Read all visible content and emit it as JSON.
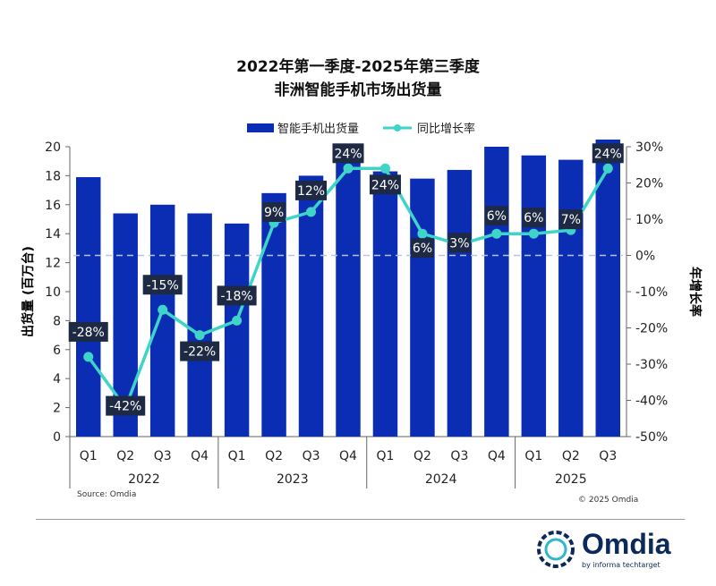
{
  "chart_data": {
    "type": "bar+line",
    "title": [
      "2022年第一季度-2025年第三季度",
      "非洲智能手机市场出货量"
    ],
    "ylabel": "出货量 (百万台)",
    "y2label": "年增长率",
    "ylim": [
      0,
      20
    ],
    "yticks": [
      "0",
      "2",
      "4",
      "6",
      "8",
      "10",
      "12",
      "14",
      "16",
      "18",
      "20"
    ],
    "y2lim": [
      -50,
      30
    ],
    "y2ticks": [
      "-50%",
      "-40%",
      "-30%",
      "-20%",
      "-10%",
      "0%",
      "10%",
      "20%",
      "30%"
    ],
    "quarters": [
      "Q1",
      "Q2",
      "Q3",
      "Q4",
      "Q1",
      "Q2",
      "Q3",
      "Q4",
      "Q1",
      "Q2",
      "Q3",
      "Q4",
      "Q1",
      "Q2",
      "Q3"
    ],
    "years": [
      "2022",
      "2023",
      "2024",
      "2025"
    ],
    "legend_position": "top",
    "series": [
      {
        "name": "智能手机出货量",
        "type": "bar",
        "color": "#0a2db4",
        "values": [
          17.9,
          15.4,
          16.0,
          15.4,
          14.7,
          16.8,
          18.0,
          19.0,
          18.3,
          17.8,
          18.4,
          20.0,
          19.4,
          19.1,
          20.6
        ]
      },
      {
        "name": "同比增长率",
        "type": "line",
        "color": "#3fd4c8",
        "values": [
          -28,
          -42,
          -15,
          -22,
          -18,
          9,
          12,
          24,
          24,
          6,
          3,
          6,
          6,
          7,
          24
        ],
        "labels": [
          "-28%",
          "-42%",
          "-15%",
          "-22%",
          "-18%",
          "9%",
          "12%",
          "24%",
          "24%",
          "6%",
          "3%",
          "6%",
          "6%",
          "7%",
          "24%"
        ]
      }
    ]
  },
  "source": "Source: Omdia",
  "copyright": "© 2025 Omdia",
  "logo": {
    "name": "Omdia",
    "tagline": "by informa techtarget"
  }
}
